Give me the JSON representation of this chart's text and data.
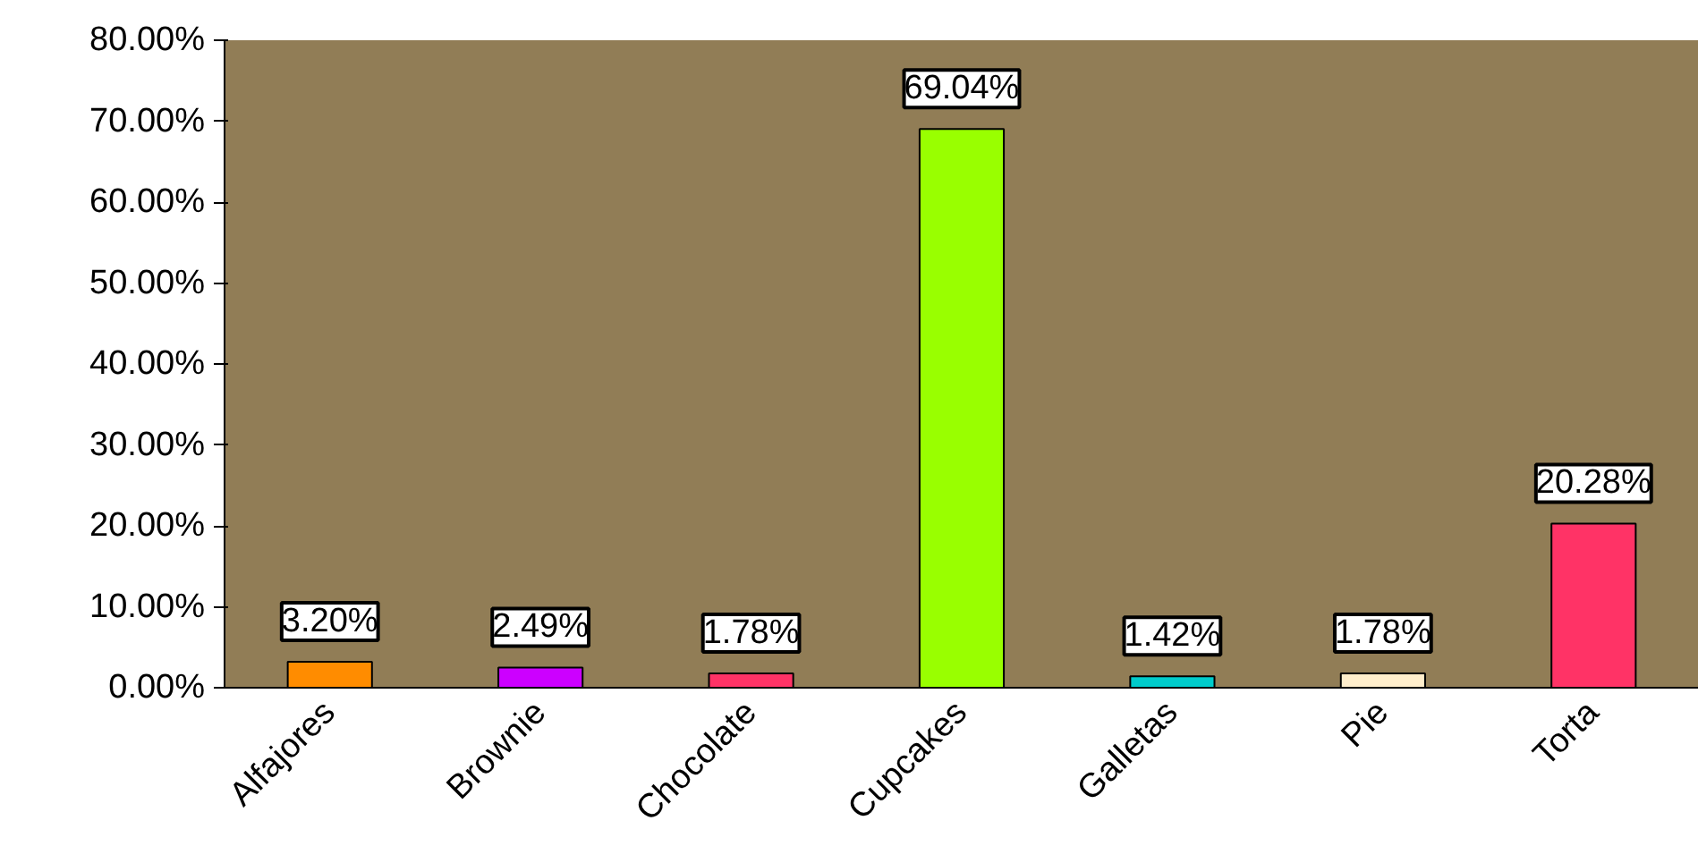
{
  "chart_data": {
    "type": "bar",
    "categories": [
      "Alfajores",
      "Brownie",
      "Chocolate",
      "Cupcakes",
      "Galletas",
      "Pie",
      "Torta"
    ],
    "values": [
      3.2,
      2.49,
      1.78,
      69.04,
      1.42,
      1.78,
      20.28
    ],
    "colors": [
      "#ff8c00",
      "#cc00ff",
      "#ff3366",
      "#99ff00",
      "#00cccc",
      "#ffeecc",
      "#ff3366"
    ],
    "value_labels": [
      "3.20%",
      "2.49%",
      "1.78%",
      "69.04%",
      "1.42%",
      "1.78%",
      "20.28%"
    ],
    "ylim": [
      0,
      80
    ],
    "yticks": [
      {
        "value": 0,
        "label": "0.00%"
      },
      {
        "value": 10,
        "label": "10.00%"
      },
      {
        "value": 20,
        "label": "20.00%"
      },
      {
        "value": 30,
        "label": "30.00%"
      },
      {
        "value": 40,
        "label": "40.00%"
      },
      {
        "value": 50,
        "label": "50.00%"
      },
      {
        "value": 60,
        "label": "60.00%"
      },
      {
        "value": 70,
        "label": "70.00%"
      },
      {
        "value": 80,
        "label": "80.00%"
      }
    ],
    "grid": false
  }
}
